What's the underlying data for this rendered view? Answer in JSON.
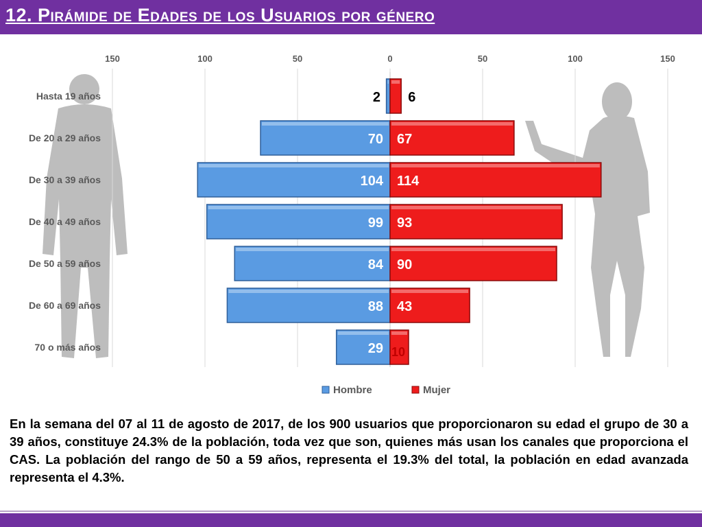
{
  "header": {
    "title": "12. Pirámide de Edades de los Usuarios por género"
  },
  "chart_data": {
    "type": "bar",
    "orientation": "horizontal",
    "categories": [
      "Hasta 19 años",
      "De 20 a 29 años",
      "De 30 a 39 años",
      "De 40 a 49 años",
      "De 50 a 59 años",
      "De 60 a 69 años",
      "70 o más años"
    ],
    "series": [
      {
        "name": "Hombre",
        "values": [
          2,
          70,
          104,
          99,
          84,
          88,
          29
        ],
        "color": "#5a9be2",
        "side": "left"
      },
      {
        "name": "Mujer",
        "values": [
          6,
          67,
          114,
          93,
          90,
          43,
          10
        ],
        "color": "#ee1c1c",
        "side": "right"
      }
    ],
    "x_ticks": [
      "150",
      "100",
      "50",
      "0",
      "50",
      "100",
      "150"
    ],
    "xlim": [
      -150,
      150
    ],
    "legend_position": "bottom",
    "grid": true
  },
  "caption": {
    "text": "En la semana del 07 al 11 de agosto de 2017, de los 900 usuarios  que proporcionaron su edad el grupo de 30 a 39 años, constituye 24.3% de la población, toda vez que son, quienes más usan los canales que proporciona el CAS. La población del rango de 50 a 59 años, representa el 19.3% del total, la población en edad avanzada representa el 4.3%."
  },
  "decor": {
    "left_silhouette": "male-silhouette-icon",
    "right_silhouette": "female-silhouette-icon"
  }
}
